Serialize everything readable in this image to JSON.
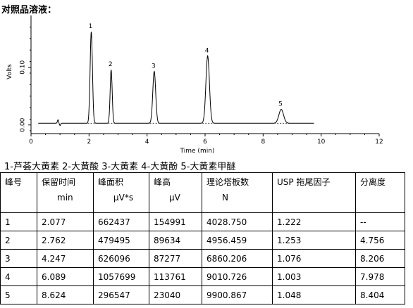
{
  "heading": "对照品溶液：",
  "chart_data": {
    "type": "line",
    "xlabel": "Time (min)",
    "ylabel": "Volts",
    "xlim": [
      0,
      12
    ],
    "ylim": [
      -0.015,
      0.19
    ],
    "x_ticks": [
      "0",
      "2",
      "4",
      "6",
      "8",
      "10",
      "12"
    ],
    "y_ticks": [
      "0.00",
      "0.10"
    ],
    "peaks": [
      {
        "label": "1",
        "time": 2.077,
        "height": 0.159,
        "width": 0.04
      },
      {
        "label": "2",
        "time": 2.762,
        "height": 0.093,
        "width": 0.035
      },
      {
        "label": "3",
        "time": 4.247,
        "height": 0.09,
        "width": 0.05
      },
      {
        "label": "4",
        "time": 6.089,
        "height": 0.117,
        "width": 0.06
      },
      {
        "label": "5",
        "time": 8.624,
        "height": 0.024,
        "width": 0.08
      }
    ],
    "baseline": 0.003
  },
  "legend": "1-芦荟大黄素 2-大黄酸 3-大黄素 4-大黄酚 5-大黄素甲醚",
  "table": {
    "headers": [
      {
        "name": "峰号",
        "unit": ""
      },
      {
        "name": "保留时间",
        "unit": "min"
      },
      {
        "name": "峰面积",
        "unit": "μV*s"
      },
      {
        "name": "峰高",
        "unit": "μV"
      },
      {
        "name": "理论塔板数",
        "unit": "N"
      },
      {
        "name": "USP 拖尾因子",
        "unit": ""
      },
      {
        "name": "分离度",
        "unit": ""
      }
    ],
    "rows": [
      [
        "1",
        "2.077",
        "662437",
        "154991",
        "4028.750",
        "1.222",
        "--"
      ],
      [
        "2",
        "2.762",
        "479495",
        "89634",
        "4956.459",
        "1.253",
        "4.756"
      ],
      [
        "3",
        "4.247",
        "626096",
        "87277",
        "6860.206",
        "1.076",
        "8.206"
      ],
      [
        "4",
        "6.089",
        "1057699",
        "113761",
        "9010.726",
        "1.003",
        "7.978"
      ],
      [
        "5",
        "8.624",
        "296547",
        "23040",
        "9900.867",
        "1.048",
        "8.404"
      ]
    ]
  }
}
